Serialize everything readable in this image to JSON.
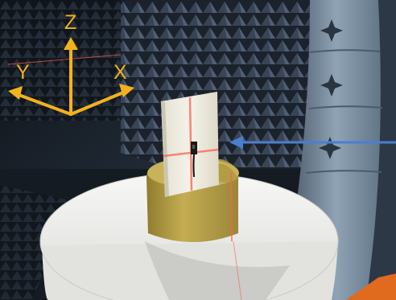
{
  "photo": {
    "subject": "antenna-under-test-in-anechoic-chamber"
  },
  "axes": {
    "z_label": "Z",
    "y_label": "Y",
    "x_label": "X",
    "color": "#f2b21c"
  },
  "incident_arrow": {
    "color": "#4a7fd0"
  },
  "colors": {
    "chamber_dark": "#1d2530",
    "absorber_blue": "#6f8396",
    "foam_block": "#b9a34a",
    "platform": "#ececec",
    "substrate": "#f1efe6",
    "laser": "#ff5f4d"
  }
}
